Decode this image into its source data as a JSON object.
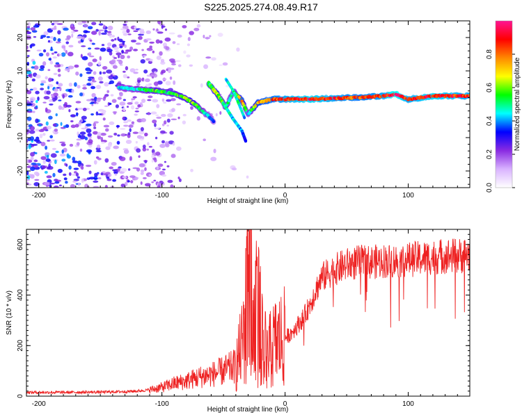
{
  "title": "S225.2025.274.08.49.R17",
  "chart_data": [
    {
      "type": "heatmap",
      "title": "S225.2025.274.08.49.R17",
      "xlabel": "Height of straight line (km)",
      "ylabel": "Frequency (Hz)",
      "xlim": [
        -210,
        150
      ],
      "ylim": [
        -25,
        25
      ],
      "x_ticks": [
        -200,
        -100,
        0,
        100
      ],
      "y_ticks": [
        -20,
        -10,
        0,
        10,
        20
      ],
      "colorbar": {
        "label": "Normalized spectral amplitude",
        "range": [
          0,
          1
        ],
        "ticks": [
          "0.0",
          "0.2",
          "0.4",
          "0.6",
          "0.8"
        ],
        "tick_values": [
          0.0,
          0.2,
          0.4,
          0.6,
          0.8
        ],
        "colors": [
          "#ffffff",
          "#d9b3ff",
          "#8a2be2",
          "#0000ff",
          "#00ffff",
          "#00ff00",
          "#ffff00",
          "#ff8800",
          "#ff0000",
          "#ff1493"
        ]
      },
      "ridge": [
        {
          "x": -135,
          "f": 5.0,
          "a": 0.45
        },
        {
          "x": -120,
          "f": 4.5,
          "a": 0.5
        },
        {
          "x": -105,
          "f": 4.0,
          "a": 0.6
        },
        {
          "x": -95,
          "f": 3.5,
          "a": 0.55
        },
        {
          "x": -85,
          "f": 2.5,
          "a": 0.6
        },
        {
          "x": -75,
          "f": 0.5,
          "a": 0.65
        },
        {
          "x": -67,
          "f": -2.0,
          "a": 0.5
        },
        {
          "x": -58,
          "f": -5.0,
          "a": 0.4
        },
        {
          "x": -62,
          "f": 6.0,
          "a": 0.6
        },
        {
          "x": -55,
          "f": 3.0,
          "a": 0.7
        },
        {
          "x": -48,
          "f": -1.0,
          "a": 0.55
        },
        {
          "x": -42,
          "f": 4.0,
          "a": 0.5
        },
        {
          "x": -35,
          "f": 1.0,
          "a": 0.8
        },
        {
          "x": -30,
          "f": -3.0,
          "a": 0.45
        },
        {
          "x": -22,
          "f": 0.5,
          "a": 0.8
        },
        {
          "x": -10,
          "f": 1.5,
          "a": 0.85
        },
        {
          "x": 0,
          "f": 1.5,
          "a": 0.9
        },
        {
          "x": 20,
          "f": 1.5,
          "a": 0.95
        },
        {
          "x": 40,
          "f": 1.8,
          "a": 0.9
        },
        {
          "x": 60,
          "f": 2.0,
          "a": 0.85
        },
        {
          "x": 80,
          "f": 2.5,
          "a": 0.9
        },
        {
          "x": 90,
          "f": 3.0,
          "a": 1.0
        },
        {
          "x": 100,
          "f": 1.5,
          "a": 0.9
        },
        {
          "x": 120,
          "f": 2.5,
          "a": 0.95
        },
        {
          "x": 150,
          "f": 2.5,
          "a": 0.9
        }
      ]
    },
    {
      "type": "line",
      "xlabel": "Height of straight line (km)",
      "ylabel": "SNR (10 * v/v)",
      "xlim": [
        -210,
        150
      ],
      "ylim": [
        0,
        660
      ],
      "x_ticks": [
        -200,
        -100,
        0,
        100
      ],
      "y_ticks": [
        0,
        200,
        400,
        600
      ],
      "line_color": "#ee2222",
      "series": [
        {
          "name": "SNR",
          "x": [
            -210,
            -180,
            -150,
            -130,
            -120,
            -110,
            -100,
            -90,
            -80,
            -70,
            -60,
            -50,
            -40,
            -35,
            -30,
            -28,
            -25,
            -20,
            -15,
            -10,
            -5,
            0,
            5,
            10,
            15,
            20,
            25,
            30,
            40,
            50,
            60,
            70,
            80,
            90,
            100,
            110,
            120,
            130,
            140,
            150
          ],
          "values": [
            15,
            15,
            16,
            18,
            20,
            25,
            35,
            50,
            60,
            75,
            85,
            100,
            120,
            200,
            420,
            640,
            350,
            300,
            150,
            200,
            220,
            230,
            250,
            280,
            310,
            360,
            420,
            470,
            500,
            520,
            530,
            530,
            535,
            535,
            540,
            545,
            550,
            555,
            555,
            560
          ]
        }
      ]
    }
  ]
}
